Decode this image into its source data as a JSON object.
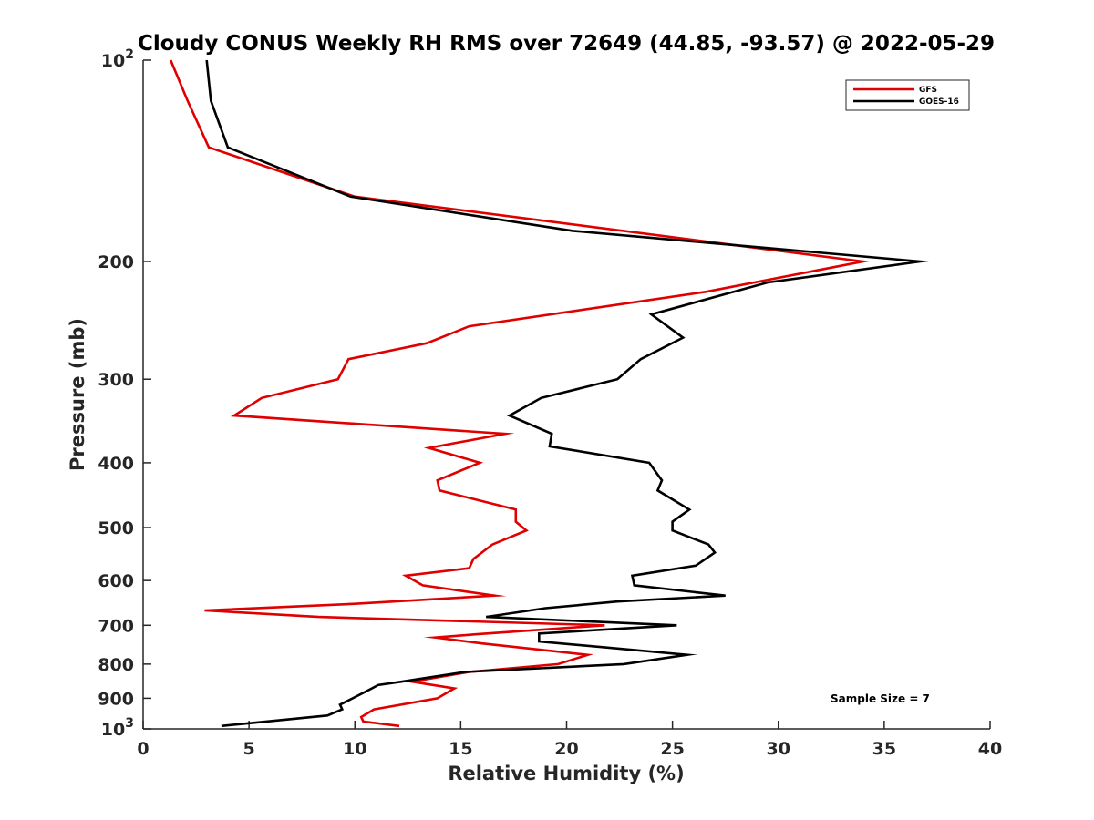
{
  "chart_data": {
    "type": "line",
    "title": "Cloudy CONUS Weekly RH RMS over 72649 (44.85, -93.57) @ 2022-05-29",
    "xlabel": "Relative Humidity (%)",
    "ylabel": "Pressure (mb)",
    "xlim": [
      0,
      40
    ],
    "ylim": [
      100,
      1000
    ],
    "yscale": "log",
    "y_reversed": true,
    "x_ticks": [
      "0",
      "5",
      "10",
      "15",
      "20",
      "25",
      "30",
      "35",
      "40"
    ],
    "y_ticks": [
      {
        "value": 100,
        "base": "10",
        "exp": "2"
      },
      {
        "value": 200,
        "label": "200"
      },
      {
        "value": 300,
        "label": "300"
      },
      {
        "value": 400,
        "label": "400"
      },
      {
        "value": 500,
        "label": "500"
      },
      {
        "value": 600,
        "label": "600"
      },
      {
        "value": 700,
        "label": "700"
      },
      {
        "value": 800,
        "label": "800"
      },
      {
        "value": 900,
        "label": "900"
      },
      {
        "value": 1000,
        "base": "10",
        "exp": "3"
      }
    ],
    "grid": false,
    "legend_position": "top-right",
    "annotation": "Sample Size = 7",
    "series": [
      {
        "name": "GFS",
        "color": "#e00000",
        "points": [
          [
            1.3,
            100
          ],
          [
            2.1,
            115
          ],
          [
            3.1,
            135
          ],
          [
            10.0,
            160
          ],
          [
            34.0,
            200
          ],
          [
            26.6,
            222
          ],
          [
            15.4,
            250
          ],
          [
            13.4,
            265
          ],
          [
            9.7,
            280
          ],
          [
            9.2,
            300
          ],
          [
            5.6,
            320
          ],
          [
            4.3,
            340
          ],
          [
            17.1,
            362
          ],
          [
            13.5,
            380
          ],
          [
            15.9,
            400
          ],
          [
            13.9,
            425
          ],
          [
            14.0,
            440
          ],
          [
            17.6,
            470
          ],
          [
            17.6,
            490
          ],
          [
            18.1,
            505
          ],
          [
            16.5,
            530
          ],
          [
            15.6,
            557
          ],
          [
            15.4,
            575
          ],
          [
            12.4,
            590
          ],
          [
            13.2,
            610
          ],
          [
            16.6,
            632
          ],
          [
            10.0,
            650
          ],
          [
            2.9,
            665
          ],
          [
            8.3,
            680
          ],
          [
            21.8,
            700
          ],
          [
            15.7,
            722
          ],
          [
            13.8,
            730
          ],
          [
            16.0,
            745
          ],
          [
            21.0,
            775
          ],
          [
            19.6,
            800
          ],
          [
            15.4,
            822
          ],
          [
            12.7,
            850
          ],
          [
            14.7,
            870
          ],
          [
            13.9,
            900
          ],
          [
            10.9,
            935
          ],
          [
            10.3,
            960
          ],
          [
            10.4,
            975
          ],
          [
            12.1,
            990
          ]
        ]
      },
      {
        "name": "GOES-16",
        "color": "#000000",
        "points": [
          [
            3.0,
            100
          ],
          [
            3.2,
            115
          ],
          [
            4.0,
            135
          ],
          [
            9.8,
            160
          ],
          [
            20.3,
            180
          ],
          [
            36.7,
            200
          ],
          [
            29.5,
            215
          ],
          [
            24.0,
            240
          ],
          [
            25.5,
            260
          ],
          [
            23.5,
            280
          ],
          [
            22.4,
            300
          ],
          [
            18.8,
            320
          ],
          [
            17.3,
            340
          ],
          [
            19.3,
            362
          ],
          [
            19.2,
            378
          ],
          [
            23.9,
            400
          ],
          [
            24.5,
            425
          ],
          [
            24.3,
            440
          ],
          [
            25.8,
            470
          ],
          [
            25.0,
            490
          ],
          [
            25.0,
            505
          ],
          [
            26.7,
            530
          ],
          [
            27.0,
            545
          ],
          [
            26.1,
            570
          ],
          [
            23.1,
            590
          ],
          [
            23.2,
            610
          ],
          [
            27.5,
            632
          ],
          [
            22.4,
            645
          ],
          [
            19.0,
            660
          ],
          [
            16.2,
            680
          ],
          [
            25.2,
            700
          ],
          [
            18.7,
            720
          ],
          [
            18.7,
            740
          ],
          [
            25.7,
            775
          ],
          [
            22.7,
            800
          ],
          [
            15.2,
            822
          ],
          [
            12.2,
            850
          ],
          [
            11.1,
            860
          ],
          [
            10.8,
            870
          ],
          [
            9.9,
            900
          ],
          [
            9.3,
            920
          ],
          [
            9.4,
            935
          ],
          [
            8.7,
            955
          ],
          [
            3.7,
            990
          ]
        ]
      }
    ]
  }
}
